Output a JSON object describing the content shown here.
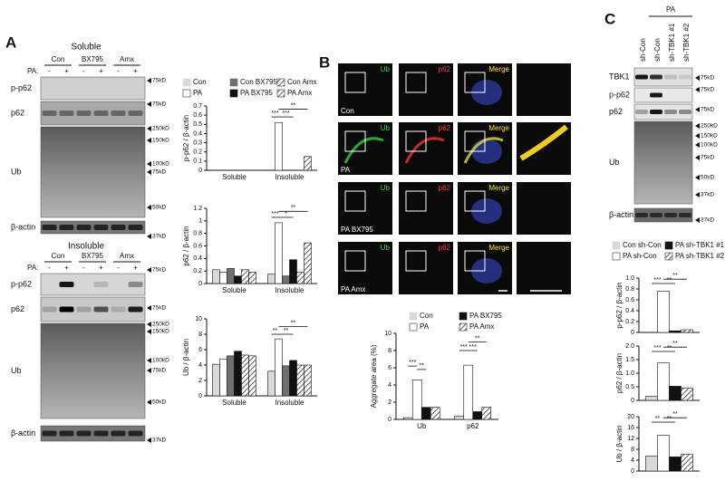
{
  "panel_a": {
    "label": "A",
    "soluble": {
      "title": "Soluble",
      "groups": [
        "Con",
        "BX795",
        "Amx"
      ],
      "pa_label": "PA:",
      "pa_signs": [
        "-",
        "+",
        "-",
        "+",
        "-",
        "+"
      ],
      "rows": [
        "p-p62",
        "p62",
        "Ub",
        "β-actin"
      ],
      "markers": [
        "75kD",
        "75kD",
        "250kD",
        "150kD",
        "100kD",
        "75kD",
        "50kD",
        "37kD"
      ]
    },
    "insoluble": {
      "title": "Insoluble",
      "groups": [
        "Con",
        "BX795",
        "Amx"
      ],
      "pa_label": "PA:",
      "pa_signs": [
        "-",
        "+",
        "-",
        "+",
        "-",
        "+"
      ],
      "rows": [
        "p-p62",
        "p62",
        "Ub",
        "β-actin"
      ],
      "markers": [
        "75kD",
        "75kD",
        "250kD",
        "150kD",
        "100kD",
        "75kD",
        "50kD",
        "37kD"
      ]
    }
  },
  "panel_b": {
    "label": "B",
    "channels": [
      "Ub",
      "p62",
      "Merge"
    ],
    "rows": [
      "Con",
      "PA",
      "PA BX795",
      "PA Amx"
    ]
  },
  "panel_c": {
    "label": "C",
    "pa_label": "PA",
    "lanes": [
      "sh-Con",
      "sh-Con",
      "sh-TBK1 #1",
      "sh-TBK1 #2"
    ],
    "rows": [
      "TBK1",
      "p-p62",
      "p62",
      "Ub",
      "β-actin"
    ],
    "markers": [
      "75kD",
      "75kD",
      "75kD",
      "250kD",
      "150kD",
      "100kD",
      "75kD",
      "50kD",
      "37kD",
      "37kD"
    ]
  },
  "chart_data": [
    {
      "type": "bar",
      "categories": [
        "Soluble",
        "Insoluble"
      ],
      "series": [
        {
          "name": "Con",
          "color": "#d9d9d9"
        },
        {
          "name": "PA",
          "color": "#ffffff"
        },
        {
          "name": "Con BX795",
          "color": "#707070"
        },
        {
          "name": "PA BX795",
          "color": "#111111"
        },
        {
          "name": "Con Amx",
          "color": "#bbbbbb",
          "hatch": true
        },
        {
          "name": "PA Amx",
          "color": "#333333",
          "hatch": true
        }
      ],
      "subplots": [
        {
          "ylabel": "p-p62 / β-actin",
          "ylim": [
            0,
            0.7
          ],
          "yticks": [
            0,
            0.1,
            0.2,
            0.3,
            0.4,
            0.5,
            0.6,
            0.7
          ],
          "values": [
            [
              0,
              0
            ],
            [
              0,
              0.52
            ],
            [
              0,
              0
            ],
            [
              0,
              0
            ],
            [
              0,
              0
            ],
            [
              0,
              0.15
            ]
          ],
          "annotations": [
            "***",
            "***",
            "**"
          ]
        },
        {
          "ylabel": "p62 / β-actin",
          "ylim": [
            0,
            1.2
          ],
          "yticks": [
            0,
            0.2,
            0.4,
            0.6,
            0.8,
            1,
            1.2
          ],
          "values": [
            [
              0.22,
              0.15
            ],
            [
              0.18,
              0.97
            ],
            [
              0.24,
              0.12
            ],
            [
              0.12,
              0.38
            ],
            [
              0.22,
              0.18
            ],
            [
              0.18,
              0.65
            ]
          ],
          "annotations": [
            "***",
            "*",
            "**"
          ]
        },
        {
          "ylabel": "Ub / β-actin",
          "ylim": [
            0,
            10
          ],
          "yticks": [
            0,
            2,
            4,
            6,
            8,
            10
          ],
          "values": [
            [
              4.1,
              3.2
            ],
            [
              4.8,
              7.4
            ],
            [
              5.2,
              3.9
            ],
            [
              5.8,
              4.6
            ],
            [
              5.3,
              4.0
            ],
            [
              5.2,
              4.0
            ]
          ],
          "annotations": [
            "**",
            "**",
            "**"
          ]
        }
      ]
    },
    {
      "type": "bar",
      "categories": [
        "Ub",
        "p62"
      ],
      "series": [
        {
          "name": "Con",
          "color": "#d9d9d9"
        },
        {
          "name": "PA",
          "color": "#ffffff"
        },
        {
          "name": "PA BX795",
          "color": "#111111"
        },
        {
          "name": "PA Amx",
          "color": "#333333",
          "hatch": true
        }
      ],
      "subplots": [
        {
          "ylabel": "Aggregate area (%)",
          "ylim": [
            0,
            10
          ],
          "yticks": [
            0,
            2,
            4,
            6,
            8,
            10
          ],
          "values": [
            [
              0.2,
              0.4
            ],
            [
              4.6,
              6.3
            ],
            [
              1.4,
              0.9
            ],
            [
              1.4,
              1.4
            ]
          ],
          "annotations": [
            "***",
            "**",
            "***",
            "***",
            "**"
          ]
        }
      ]
    },
    {
      "type": "bar",
      "categories": [
        null
      ],
      "series": [
        {
          "name": "Con sh-Con",
          "color": "#d9d9d9"
        },
        {
          "name": "PA sh-Con",
          "color": "#ffffff"
        },
        {
          "name": "PA sh-TBK1 #1",
          "color": "#111111"
        },
        {
          "name": "PA sh-TBK1 #2",
          "color": "#333333",
          "hatch": true
        }
      ],
      "subplots": [
        {
          "ylabel": "p-p62 / β-actin",
          "ylim": [
            0,
            1
          ],
          "yticks": [
            0,
            0.2,
            0.4,
            0.6,
            0.8,
            {
              "value": 1,
              "label": "1.0"
            }
          ],
          "values": [
            [
              0
            ],
            [
              0.76
            ],
            [
              0.03
            ],
            [
              0.05
            ]
          ],
          "annotations": [
            "***",
            "**",
            "**"
          ]
        },
        {
          "ylabel": "p62 / β-actin",
          "ylim": [
            0,
            2
          ],
          "yticks": [
            0,
            0.5,
            {
              "value": 1,
              "label": "1.0"
            },
            1.5,
            {
              "value": 2,
              "label": "2.0"
            }
          ],
          "values": [
            [
              0.15
            ],
            [
              1.38
            ],
            [
              0.52
            ],
            [
              0.46
            ]
          ],
          "annotations": [
            "***",
            "**",
            "**"
          ]
        },
        {
          "ylabel": "Ub / β-actin",
          "ylim": [
            0,
            20
          ],
          "yticks": [
            0,
            4,
            8,
            12,
            16,
            20
          ],
          "values": [
            [
              5.5
            ],
            [
              13.2
            ],
            [
              5.2
            ],
            [
              6.2
            ]
          ],
          "annotations": [
            "**",
            "**",
            "**"
          ]
        }
      ]
    }
  ]
}
